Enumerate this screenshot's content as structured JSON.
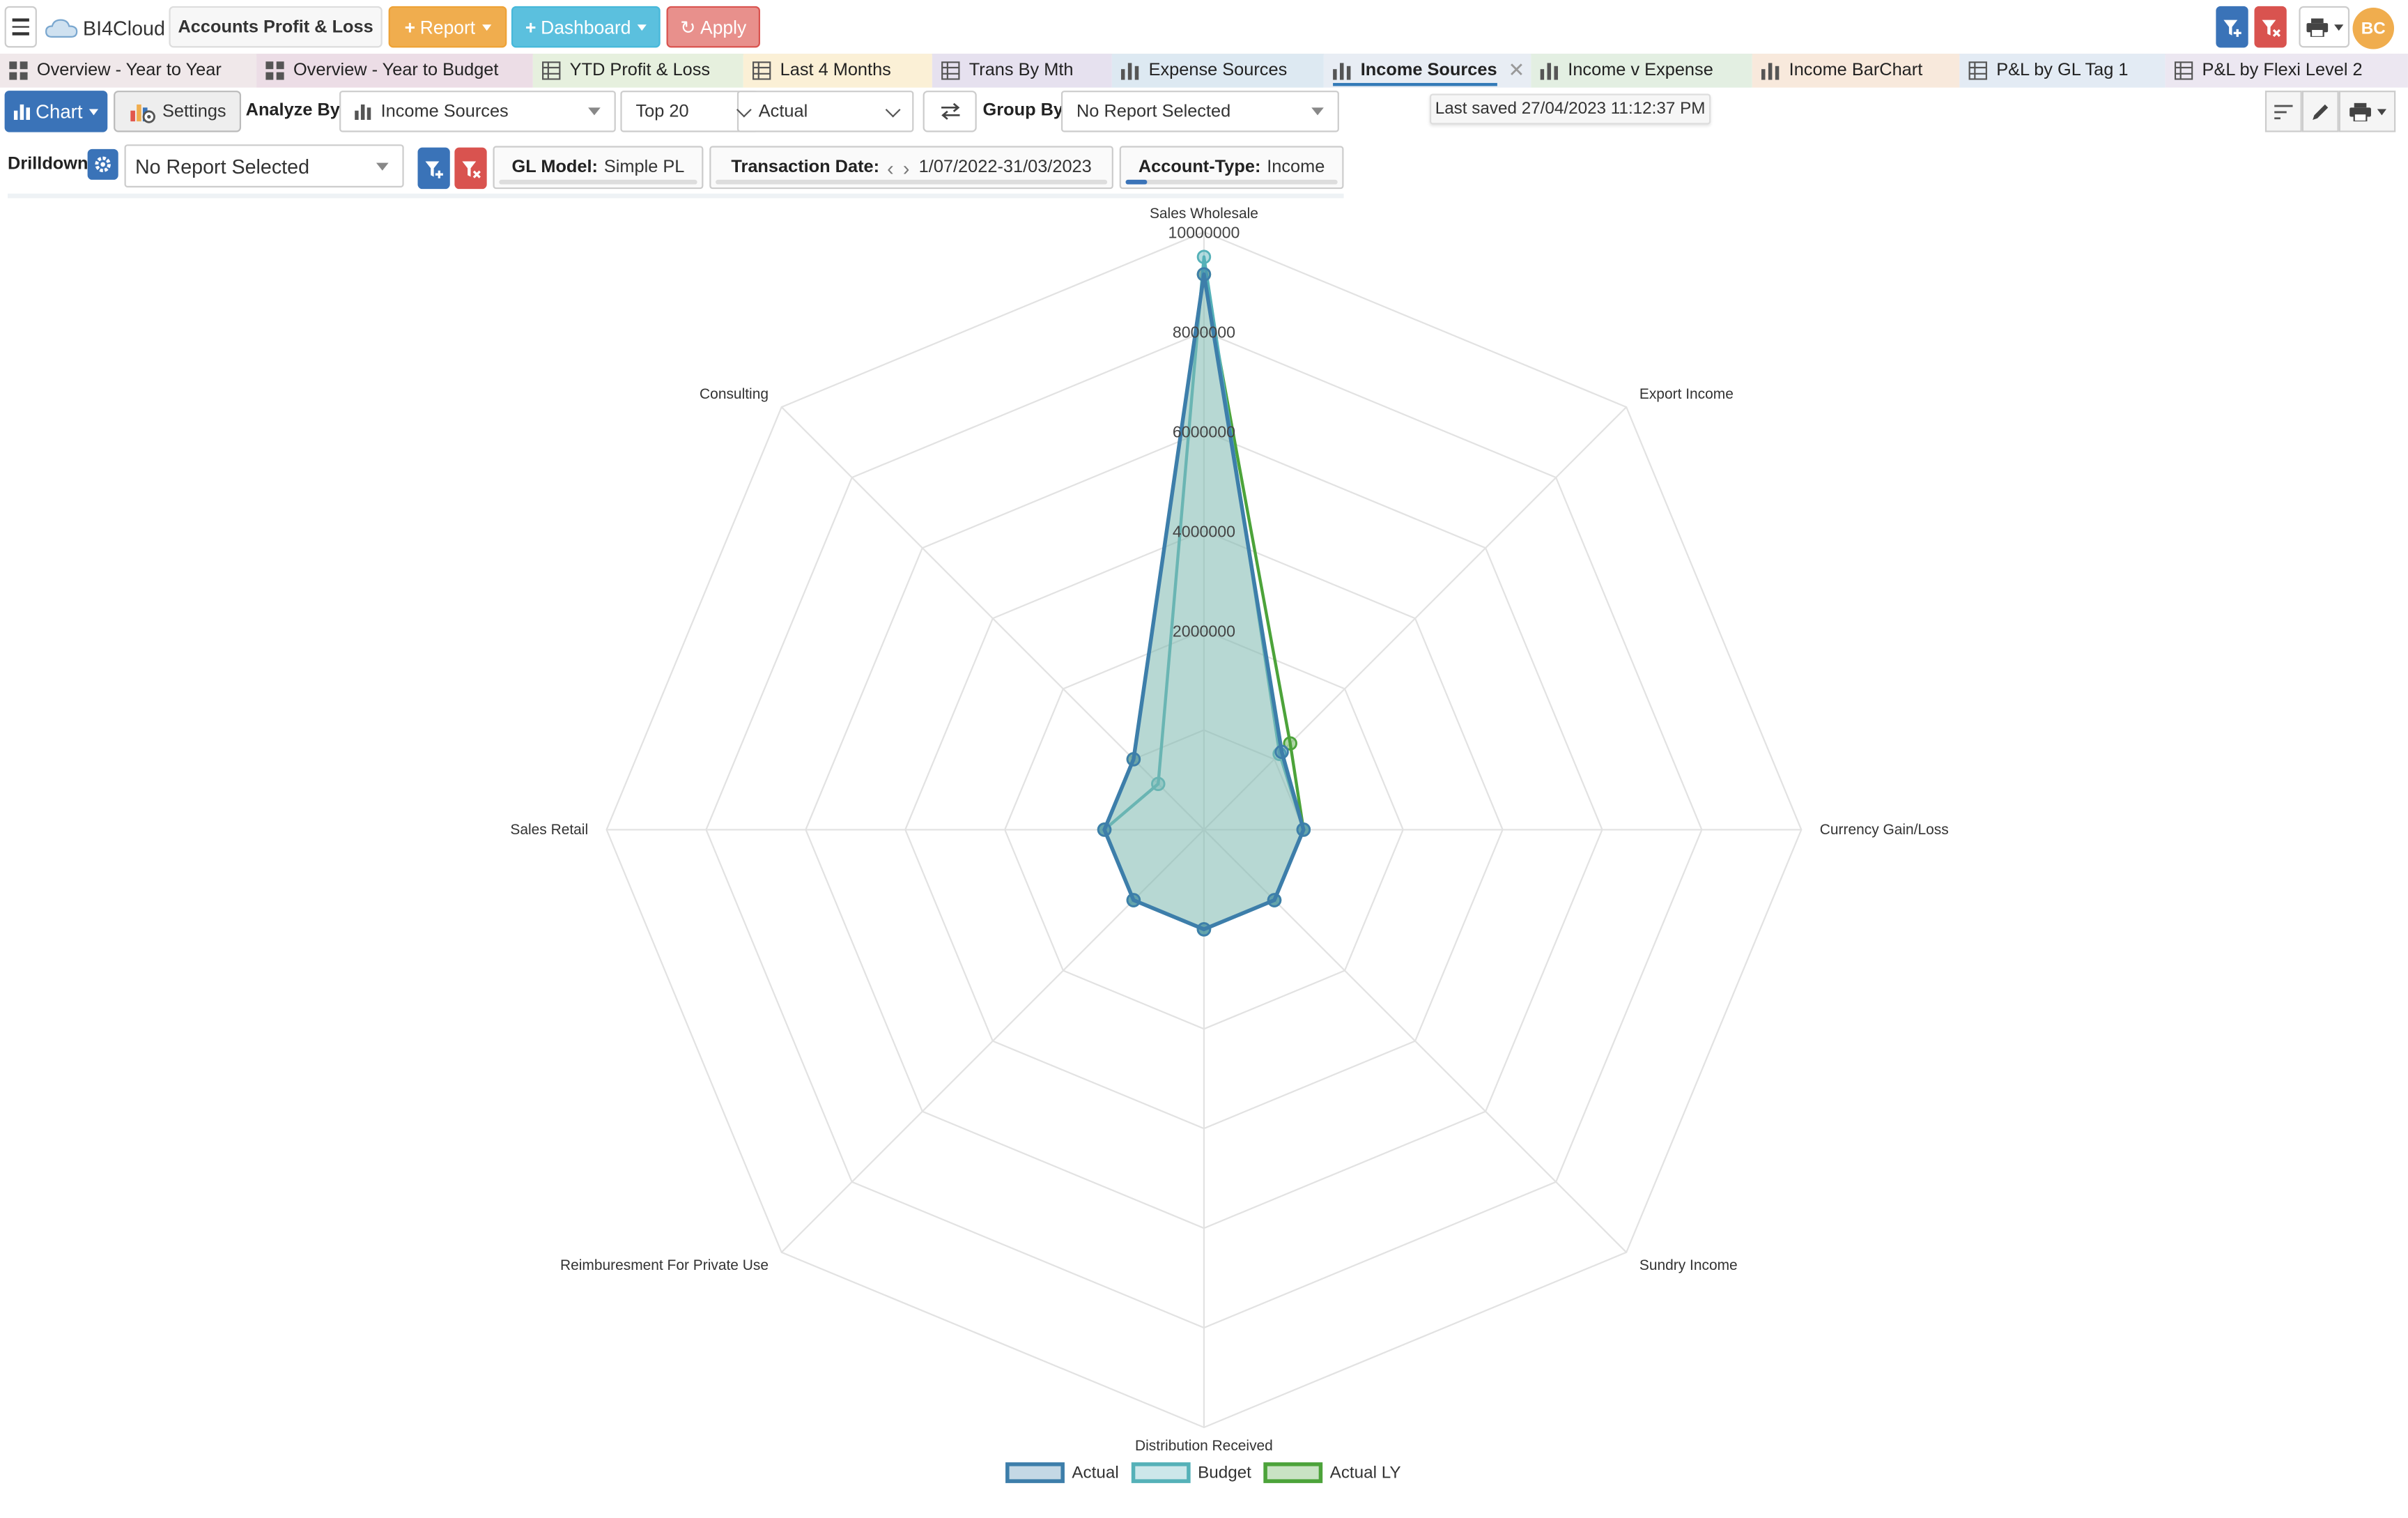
{
  "app": {
    "name": "BI4Cloud",
    "report_name": "Accounts Profit & Loss",
    "user_initials": "BC"
  },
  "topbar": {
    "report_label": "Report",
    "dashboard_label": "Dashboard",
    "apply_label": "Apply"
  },
  "tabs": [
    {
      "label": "Overview - Year to Year",
      "icon": "dashboard-icon",
      "color": "#f0e8ea"
    },
    {
      "label": "Overview - Year to Budget",
      "icon": "dashboard-icon",
      "color": "#ecdde6"
    },
    {
      "label": "YTD Profit & Loss",
      "icon": "table-icon",
      "color": "#e6f0de"
    },
    {
      "label": "Last 4 Months",
      "icon": "table-icon",
      "color": "#fbf0d6"
    },
    {
      "label": "Trans By Mth",
      "icon": "table-icon",
      "color": "#e6e1ef"
    },
    {
      "label": "Expense Sources",
      "icon": "bar-chart-icon",
      "color": "#dde9f2"
    },
    {
      "label": "Income Sources",
      "icon": "bar-chart-icon",
      "color": "#e8edf4",
      "active": true
    },
    {
      "label": "Income v Expense",
      "icon": "bar-chart-icon",
      "color": "#e3efe2"
    },
    {
      "label": "Income BarChart",
      "icon": "bar-chart-icon",
      "color": "#f8e9dc"
    },
    {
      "label": "P&L by GL Tag 1",
      "icon": "table-icon",
      "color": "#e3ebf4"
    },
    {
      "label": "P&L by Flexi Level 2",
      "icon": "table-icon",
      "color": "#ece7f1"
    }
  ],
  "toolbar": {
    "chart_label": "Chart",
    "settings_label": "Settings",
    "analyze_by_label": "Analyze By",
    "analyze_by_value": "Income Sources",
    "top_value": "Top 20",
    "measure_value": "Actual",
    "group_by_label": "Group By",
    "group_by_value": "No Report Selected",
    "last_saved": "Last saved 27/04/2023 11:12:37 PM"
  },
  "filters": {
    "drilldown_label": "Drilldown",
    "drilldown_value": "No Report Selected",
    "gl_model_label": "GL Model:",
    "gl_model_value": "Simple PL",
    "date_label": "Transaction Date:",
    "date_value": "1/07/2022-31/03/2023",
    "account_type_label": "Account-Type:",
    "account_type_value": "Income"
  },
  "colors": {
    "actual": "#3d7eaa",
    "budget": "#55b1b8",
    "actual_ly": "#4ca33a",
    "fill": "#7bb8ae"
  },
  "chart_data": {
    "type": "radar",
    "title": "",
    "categories": [
      "Sales Wholesale",
      "Export Income",
      "Currency Gain/Loss",
      "Sundry Income",
      "Distribution Received",
      "Reimburesment For Private Use",
      "Sales Retail",
      "Consulting"
    ],
    "rlim": [
      -2000000,
      10000000
    ],
    "ticks": [
      2000000,
      4000000,
      6000000,
      8000000,
      10000000
    ],
    "tick_labels": [
      "2000000",
      "4000000",
      "6000000",
      "8000000",
      "10000000"
    ],
    "grid": true,
    "legend_position": "bottom",
    "series": [
      {
        "name": "Actual",
        "values": [
          9150000,
          210000,
          0,
          0,
          0,
          0,
          0,
          0
        ]
      },
      {
        "name": "Budget",
        "values": [
          9500000,
          150000,
          0,
          0,
          0,
          0,
          0,
          -700000
        ]
      },
      {
        "name": "Actual LY",
        "values": [
          9150000,
          450000,
          0,
          0,
          0,
          0,
          0,
          0
        ]
      }
    ]
  }
}
